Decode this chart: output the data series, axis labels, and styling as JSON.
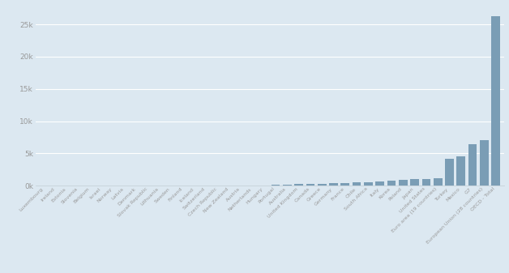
{
  "categories": [
    "Luxembourg",
    "Ireland",
    "Estonia",
    "Slovenia",
    "Belgium",
    "Israel",
    "Norway",
    "Latvia",
    "Denmark",
    "Slovak Republic",
    "Lithuania",
    "Sweden",
    "Finland",
    "Iceland",
    "Switzerland",
    "Czech Republic",
    "New Zealand",
    "Austria",
    "Netherlands",
    "Hungary",
    "Portugal",
    "Australia",
    "United Kingdom",
    "Canada",
    "Greece",
    "Germany",
    "France",
    "Chile",
    "South Africa",
    "Italy",
    "Korea",
    "Poland",
    "Japan",
    "United States",
    "Euro area (19 countries)",
    "Turkey",
    "Mexico",
    "G7",
    "European Union (28 countries)",
    "OECD - Total"
  ],
  "values": [
    30,
    20,
    25,
    28,
    15,
    22,
    35,
    20,
    25,
    18,
    22,
    30,
    32,
    32,
    38,
    18,
    22,
    32,
    32,
    25,
    120,
    170,
    220,
    270,
    330,
    380,
    430,
    490,
    560,
    660,
    760,
    870,
    980,
    1080,
    1200,
    4200,
    4600,
    6400,
    7000,
    26200
  ],
  "bar_color": "#7a9db5",
  "bg_color": "#dce8f1",
  "fig_bg": "#dce8f1",
  "ylim": [
    0,
    27500
  ],
  "yticks": [
    0,
    5000,
    10000,
    15000,
    20000,
    25000
  ],
  "ytick_labels": [
    "0k",
    "5k",
    "10k",
    "15k",
    "20k",
    "25k"
  ],
  "tick_color": "#999999",
  "grid_color": "#ffffff",
  "figsize": [
    6.28,
    3.37
  ],
  "dpi": 100
}
